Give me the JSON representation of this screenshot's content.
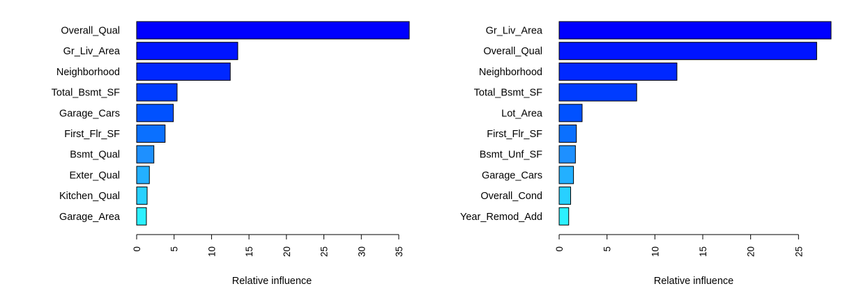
{
  "chart_data": [
    {
      "type": "bar",
      "orientation": "horizontal",
      "categories": [
        "Overall_Qual",
        "Gr_Liv_Area",
        "Neighborhood",
        "Total_Bsmt_SF",
        "Garage_Cars",
        "First_Flr_SF",
        "Bsmt_Qual",
        "Exter_Qual",
        "Kitchen_Qual",
        "Garage_Area"
      ],
      "values": [
        36.4,
        13.5,
        12.5,
        5.4,
        4.9,
        3.8,
        2.3,
        1.7,
        1.4,
        1.3
      ],
      "colors": [
        "#0000ff",
        "#0014ff",
        "#0028ff",
        "#003cff",
        "#0051ff",
        "#0a70ff",
        "#1e90ff",
        "#23b0ff",
        "#28d0ff",
        "#2cf0ff"
      ],
      "xlabel": "Relative influence",
      "xticks": [
        0,
        5,
        10,
        15,
        20,
        25,
        30,
        35
      ],
      "xlim": [
        0,
        36.4
      ],
      "grid": false
    },
    {
      "type": "bar",
      "orientation": "horizontal",
      "categories": [
        "Gr_Liv_Area",
        "Overall_Qual",
        "Neighborhood",
        "Total_Bsmt_SF",
        "Lot_Area",
        "First_Flr_SF",
        "Bsmt_Unf_SF",
        "Garage_Cars",
        "Overall_Cond",
        "Year_Remod_Add"
      ],
      "values": [
        28.4,
        26.9,
        12.3,
        8.1,
        2.4,
        1.8,
        1.7,
        1.5,
        1.2,
        1.0
      ],
      "colors": [
        "#0000ff",
        "#0014ff",
        "#0028ff",
        "#003cff",
        "#0051ff",
        "#0a70ff",
        "#1e90ff",
        "#23b0ff",
        "#28d0ff",
        "#2cf0ff"
      ],
      "xlabel": "Relative influence",
      "xticks": [
        0,
        5,
        10,
        15,
        20,
        25
      ],
      "xlim": [
        0,
        28.4
      ],
      "grid": false
    }
  ]
}
